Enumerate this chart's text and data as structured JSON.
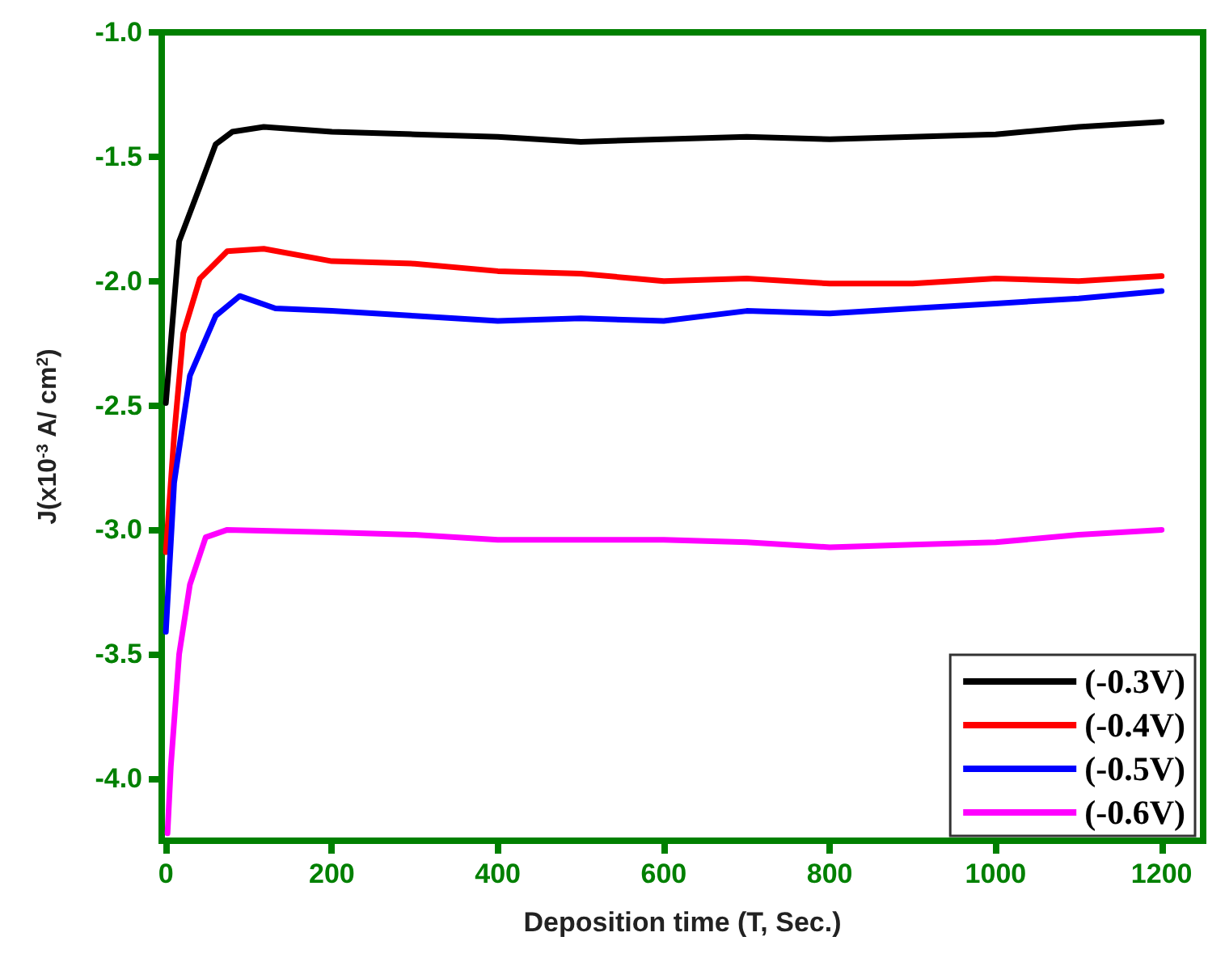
{
  "chart_data": {
    "type": "line",
    "xlabel": "Deposition time (T, Sec.)",
    "ylabel": "J(x10$^{-3}$ A/ cm$^{2}$)",
    "xlim": [
      -5,
      1250
    ],
    "xticks": [
      0,
      200,
      400,
      600,
      800,
      1000,
      1200
    ],
    "ylim": [
      -4.25,
      -1.0
    ],
    "yticks": [
      {
        "value": -1.0,
        "label": "-1.0"
      },
      {
        "value": -1.5,
        "label": "-1.5"
      },
      {
        "value": -2.0,
        "label": "-2.0"
      },
      {
        "value": -2.5,
        "label": "-2.5"
      },
      {
        "value": -3.0,
        "label": "-3.0"
      },
      {
        "value": -3.5,
        "label": "-3.5"
      },
      {
        "value": -4.0,
        "label": "-4.0"
      }
    ],
    "grid": false,
    "legend": "bottom right",
    "marker": "none",
    "line_style": "solid",
    "series": [
      {
        "name": "(-0.3V)",
        "color": "#000000",
        "x": [
          0,
          16,
          41,
          60,
          80,
          118,
          200,
          300,
          400,
          500,
          600,
          700,
          800,
          900,
          1000,
          1100,
          1200
        ],
        "values": [
          -2.49,
          -1.84,
          -1.62,
          -1.45,
          -1.4,
          -1.38,
          -1.4,
          -1.41,
          -1.42,
          -1.44,
          -1.43,
          -1.42,
          -1.43,
          -1.42,
          -1.41,
          -1.38,
          -1.36
        ]
      },
      {
        "name": "(-0.4V)",
        "color": "#ff0000",
        "x": [
          0,
          10,
          21,
          41,
          74,
          118,
          200,
          300,
          400,
          500,
          600,
          700,
          800,
          900,
          1000,
          1100,
          1200
        ],
        "values": [
          -3.09,
          -2.62,
          -2.21,
          -1.99,
          -1.88,
          -1.87,
          -1.92,
          -1.93,
          -1.96,
          -1.97,
          -2.0,
          -1.99,
          -2.01,
          -2.01,
          -1.99,
          -2.0,
          -1.98
        ]
      },
      {
        "name": "(-0.5V)",
        "color": "#0000ff",
        "x": [
          0,
          10,
          29,
          60,
          89,
          132,
          200,
          300,
          400,
          500,
          600,
          700,
          800,
          900,
          1000,
          1100,
          1200
        ],
        "values": [
          -3.41,
          -2.81,
          -2.38,
          -2.14,
          -2.06,
          -2.11,
          -2.12,
          -2.14,
          -2.16,
          -2.15,
          -2.16,
          -2.12,
          -2.13,
          -2.11,
          -2.09,
          -2.07,
          -2.04
        ]
      },
      {
        "name": "(-0.6V)",
        "color": "#ff00ff",
        "x": [
          2,
          6,
          16,
          29,
          48,
          74,
          200,
          300,
          400,
          500,
          600,
          700,
          800,
          900,
          1000,
          1100,
          1200
        ],
        "values": [
          -4.22,
          -3.95,
          -3.5,
          -3.22,
          -3.03,
          -3.0,
          -3.01,
          -3.02,
          -3.04,
          -3.04,
          -3.04,
          -3.05,
          -3.07,
          -3.06,
          -3.05,
          -3.02,
          -3.0
        ]
      }
    ]
  }
}
